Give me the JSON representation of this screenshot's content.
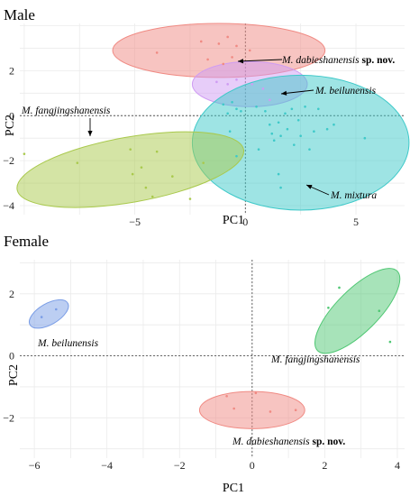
{
  "chart_data": [
    {
      "type": "scatter",
      "title": "Male",
      "xlabel": "PC1",
      "ylabel": "PC2",
      "xlim": [
        -10.2,
        7.2
      ],
      "ylim": [
        -4.4,
        4.1
      ],
      "xticks": [
        -5,
        0,
        5
      ],
      "yticks": [
        -4,
        -2,
        0,
        2
      ],
      "reference_lines": {
        "x": 0,
        "y": 0,
        "style": "dotted"
      },
      "series": [
        {
          "name": "M. dabieshanensis",
          "name_suffix": "sp. nov.",
          "color": "#f08a83",
          "ellipse": {
            "cx": -1.2,
            "cy": 2.9,
            "rx": 4.8,
            "ry": 1.2,
            "angle_deg": 0
          },
          "points": [
            [
              -4.0,
              2.8
            ],
            [
              -2.0,
              3.3
            ],
            [
              -1.7,
              2.5
            ],
            [
              -1.2,
              3.2
            ],
            [
              -0.8,
              3.5
            ],
            [
              -0.6,
              2.6
            ],
            [
              -0.4,
              3.1
            ],
            [
              0.2,
              2.9
            ],
            [
              -1.0,
              2.3
            ]
          ]
        },
        {
          "name": "M. beilunensis",
          "color": "#cf9cf3",
          "ellipse": {
            "cx": 0.2,
            "cy": 1.4,
            "rx": 2.6,
            "ry": 1.0,
            "angle_deg": 0
          },
          "points": [
            [
              -1.3,
              1.5
            ],
            [
              -0.8,
              1.4
            ],
            [
              -0.4,
              1.6
            ],
            [
              0.3,
              1.4
            ],
            [
              0.8,
              1.2
            ],
            [
              1.1,
              0.7
            ]
          ]
        },
        {
          "name": "M. mixtura",
          "color": "#3ec9c9",
          "ellipse": {
            "cx": 2.5,
            "cy": -1.2,
            "rx": 4.9,
            "ry": 3.0,
            "angle_deg": 0
          },
          "points": [
            [
              -1.0,
              0.5
            ],
            [
              -0.8,
              0.1
            ],
            [
              -0.6,
              0.6
            ],
            [
              -0.4,
              0.3
            ],
            [
              -0.2,
              0.2
            ],
            [
              0.5,
              0.4
            ],
            [
              0.9,
              0.2
            ],
            [
              1.1,
              -0.4
            ],
            [
              1.2,
              -0.8
            ],
            [
              1.3,
              -1.1
            ],
            [
              1.5,
              -0.3
            ],
            [
              1.6,
              -0.9
            ],
            [
              1.8,
              0.1
            ],
            [
              1.9,
              -0.6
            ],
            [
              2.1,
              0.3
            ],
            [
              2.2,
              -1.3
            ],
            [
              2.4,
              -0.2
            ],
            [
              2.5,
              -0.9
            ],
            [
              2.7,
              0.4
            ],
            [
              2.9,
              -1.5
            ],
            [
              3.1,
              -0.7
            ],
            [
              3.3,
              0.3
            ],
            [
              3.7,
              -0.6
            ],
            [
              4.0,
              -0.4
            ],
            [
              5.4,
              -1.0
            ],
            [
              1.5,
              -2.6
            ],
            [
              1.6,
              -3.2
            ],
            [
              -0.4,
              -1.8
            ],
            [
              0.6,
              -1.5
            ],
            [
              -0.7,
              -0.7
            ]
          ]
        },
        {
          "name": "M. fangjingshanensis",
          "color": "#a9c94c",
          "ellipse": {
            "cx": -5.2,
            "cy": -2.4,
            "rx": 5.2,
            "ry": 1.45,
            "angle_deg": -10
          },
          "points": [
            [
              -10.0,
              -1.7
            ],
            [
              -7.6,
              -2.1
            ],
            [
              -5.2,
              -1.5
            ],
            [
              -5.1,
              -2.6
            ],
            [
              -4.7,
              -2.3
            ],
            [
              -4.5,
              -3.2
            ],
            [
              -4.0,
              -1.6
            ],
            [
              -3.3,
              -2.7
            ],
            [
              -2.5,
              -3.7
            ],
            [
              -1.9,
              -2.1
            ],
            [
              -4.2,
              -3.6
            ]
          ]
        }
      ]
    },
    {
      "type": "scatter",
      "title": "Female",
      "xlabel": "PC1",
      "ylabel": "PC2",
      "xlim": [
        -6.4,
        4.2
      ],
      "ylim": [
        -3.3,
        3.1
      ],
      "xticks": [
        -6,
        -4,
        -2,
        0,
        2,
        4
      ],
      "yticks": [
        -2,
        0,
        2
      ],
      "reference_lines": {
        "x": 0,
        "y": 0,
        "style": "dotted"
      },
      "series": [
        {
          "name": "M. beilunensis",
          "color": "#7a9de6",
          "ellipse": {
            "cx": -5.6,
            "cy": 1.35,
            "rx": 0.6,
            "ry": 0.34,
            "angle_deg": -30
          },
          "points": [
            [
              -5.8,
              1.25
            ],
            [
              -5.4,
              1.5
            ]
          ]
        },
        {
          "name": "M. fangjingshanensis",
          "color": "#4fc773",
          "ellipse": {
            "cx": 2.9,
            "cy": 1.45,
            "rx": 1.55,
            "ry": 0.68,
            "angle_deg": -45
          },
          "points": [
            [
              2.1,
              1.55
            ],
            [
              2.4,
              2.2
            ],
            [
              3.5,
              1.45
            ],
            [
              3.8,
              0.45
            ]
          ]
        },
        {
          "name": "M. dabieshanensis",
          "name_suffix": "sp. nov.",
          "color": "#f08a83",
          "ellipse": {
            "cx": 0.0,
            "cy": -1.75,
            "rx": 1.45,
            "ry": 0.6,
            "angle_deg": 0
          },
          "points": [
            [
              -0.7,
              -1.3
            ],
            [
              -0.5,
              -1.7
            ],
            [
              0.1,
              -1.2
            ],
            [
              0.5,
              -1.8
            ],
            [
              1.2,
              -1.75
            ]
          ]
        }
      ]
    }
  ]
}
